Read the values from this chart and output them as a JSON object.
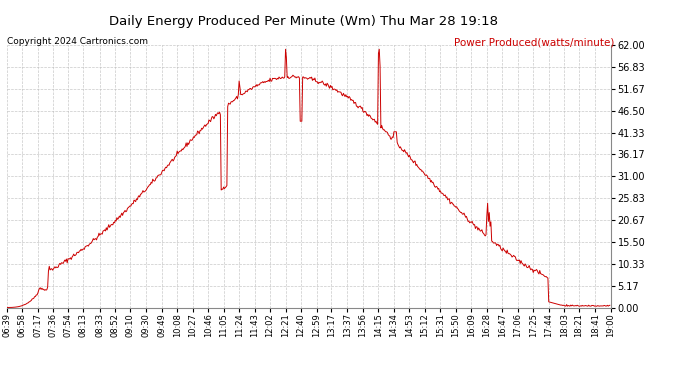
{
  "title": "Daily Energy Produced Per Minute (Wm) Thu Mar 28 19:18",
  "copyright": "Copyright 2024 Cartronics.com",
  "legend_label": "Power Produced(watts/minute)",
  "line_color": "#cc0000",
  "background_color": "#ffffff",
  "plot_bg_color": "#ffffff",
  "grid_color": "#bbbbbb",
  "yticks": [
    0.0,
    5.17,
    10.33,
    15.5,
    20.67,
    25.83,
    31.0,
    36.17,
    41.33,
    46.5,
    51.67,
    56.83,
    62.0
  ],
  "ymax": 62.0,
  "ymin": 0.0,
  "xtick_labels": [
    "06:39",
    "06:58",
    "07:17",
    "07:36",
    "07:54",
    "08:13",
    "08:33",
    "08:52",
    "09:10",
    "09:30",
    "09:49",
    "10:08",
    "10:27",
    "10:46",
    "11:05",
    "11:24",
    "11:43",
    "12:02",
    "12:21",
    "12:40",
    "12:59",
    "13:17",
    "13:37",
    "13:56",
    "14:15",
    "14:34",
    "14:53",
    "15:12",
    "15:31",
    "15:50",
    "16:09",
    "16:28",
    "16:47",
    "17:06",
    "17:25",
    "17:44",
    "18:03",
    "18:21",
    "18:41",
    "19:00"
  ]
}
